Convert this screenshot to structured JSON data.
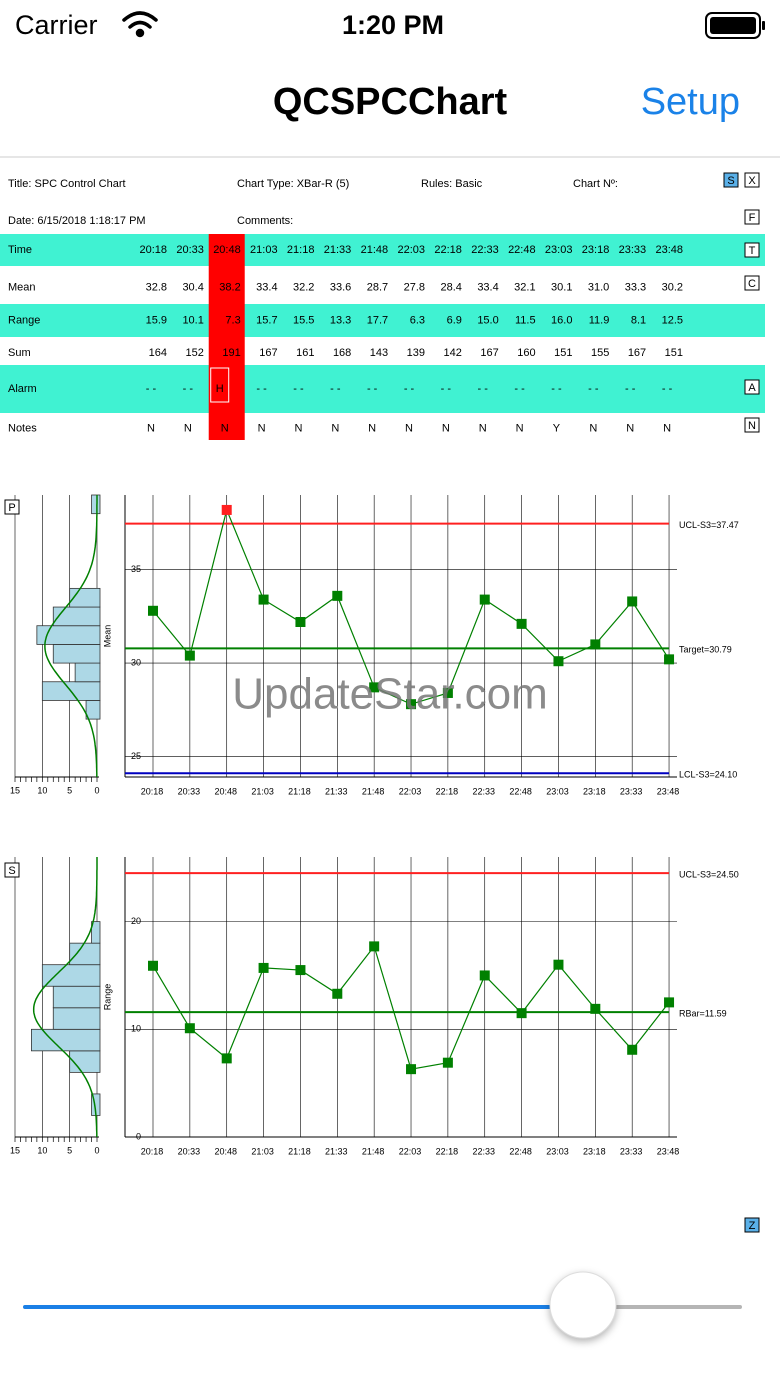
{
  "status_bar": {
    "carrier": "Carrier",
    "time": "1:20 PM"
  },
  "nav": {
    "title": "QCSPCChart",
    "button": "Setup"
  },
  "header": {
    "title": "Title: SPC Control Chart",
    "chart_type": "Chart Type: XBar-R (5)",
    "rules": "Rules: Basic",
    "chart_no": "Chart Nº:",
    "date": "Date: 6/15/2018 1:18:17 PM",
    "comments": "Comments:"
  },
  "buttons": [
    "S",
    "X",
    "F",
    "T",
    "C",
    "A",
    "N",
    "P",
    "S",
    "Z"
  ],
  "table": {
    "highlight_column": 2,
    "highlight_color": "#ff0000",
    "band_color": "#40f2d2",
    "rows": [
      {
        "label": "Time",
        "values": [
          "20:18",
          "20:33",
          "20:48",
          "21:03",
          "21:18",
          "21:33",
          "21:48",
          "22:03",
          "22:18",
          "22:33",
          "22:48",
          "23:03",
          "23:18",
          "23:33",
          "23:48"
        ]
      },
      {
        "label": "Mean",
        "values": [
          "32.8",
          "30.4",
          "38.2",
          "33.4",
          "32.2",
          "33.6",
          "28.7",
          "27.8",
          "28.4",
          "33.4",
          "32.1",
          "30.1",
          "31.0",
          "33.3",
          "30.2"
        ]
      },
      {
        "label": "Range",
        "values": [
          "15.9",
          "10.1",
          "7.3",
          "15.7",
          "15.5",
          "13.3",
          "17.7",
          "6.3",
          "6.9",
          "15.0",
          "11.5",
          "16.0",
          "11.9",
          "8.1",
          "12.5"
        ]
      },
      {
        "label": "Sum",
        "values": [
          "164",
          "152",
          "191",
          "167",
          "161",
          "168",
          "143",
          "139",
          "142",
          "167",
          "160",
          "151",
          "155",
          "167",
          "151"
        ]
      },
      {
        "label": "Alarm",
        "values": [
          "-   -",
          "-   -",
          "H",
          "-   -",
          "-   -",
          "-   -",
          "-   -",
          "-   -",
          "-   -",
          "-   -",
          "-   -",
          "-   -",
          "-   -",
          "-   -",
          "-   -"
        ]
      },
      {
        "label": "Notes",
        "values": [
          "N",
          "N",
          "N",
          "N",
          "N",
          "N",
          "N",
          "N",
          "N",
          "N",
          "N",
          "Y",
          "N",
          "N",
          "N"
        ]
      }
    ]
  },
  "charts": [
    {
      "type": "line",
      "ylabel": "Mean",
      "ylim": [
        23.9,
        39
      ],
      "yticks": [
        25,
        30,
        35
      ],
      "color": "#008000",
      "alarm_color": "#ff2020",
      "limits": [
        {
          "label": "UCL-S3=37.47",
          "value": 37.47,
          "color": "#ff2020"
        },
        {
          "label": "Target=30.79",
          "value": 30.79,
          "color": "#008000"
        },
        {
          "label": "LCL-S3=24.10",
          "value": 24.1,
          "color": "#0000c0"
        }
      ],
      "histogram": {
        "bins": [
          27,
          28,
          29,
          30,
          31,
          32,
          33,
          34,
          35,
          36,
          37,
          38,
          39
        ],
        "counts": [
          2,
          10,
          4,
          8,
          11,
          8,
          5,
          0,
          0,
          0,
          0,
          1
        ],
        "xlim": [
          15,
          0
        ],
        "xticks": [
          15,
          10,
          5,
          0
        ],
        "color": "#add8e6"
      }
    },
    {
      "type": "line",
      "ylabel": "Range",
      "ylim": [
        0,
        26
      ],
      "yticks": [
        0,
        10,
        20
      ],
      "color": "#008000",
      "limits": [
        {
          "label": "UCL-S3=24.50",
          "value": 24.5,
          "color": "#ff2020"
        },
        {
          "label": "RBar=11.59",
          "value": 11.59,
          "color": "#008000"
        }
      ],
      "histogram": {
        "bins": [
          0,
          2,
          4,
          6,
          8,
          10,
          12,
          14,
          16,
          18,
          20
        ],
        "counts": [
          0,
          1,
          0,
          5,
          12,
          8,
          8,
          10,
          5,
          1
        ],
        "xlim": [
          15,
          0
        ],
        "xticks": [
          15,
          10,
          5,
          0
        ],
        "color": "#add8e6"
      }
    }
  ],
  "watermark": "UpdateStar.com"
}
